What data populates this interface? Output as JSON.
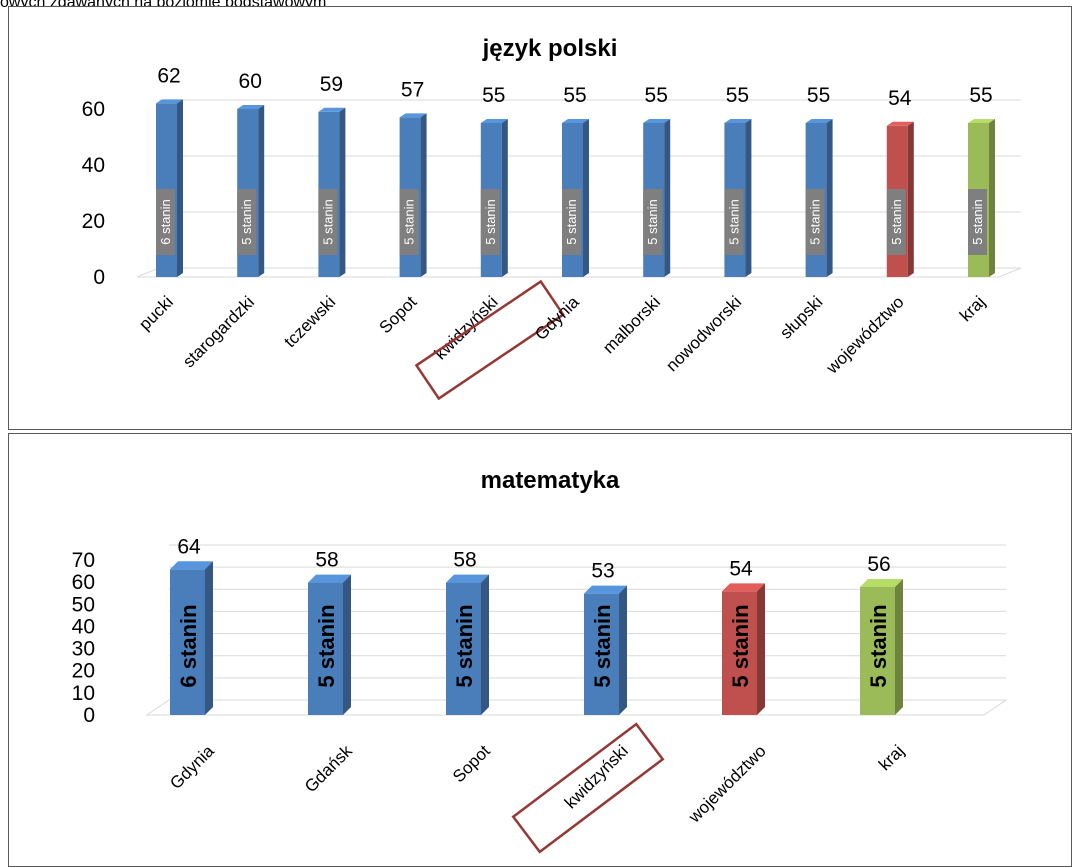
{
  "caption": "owych zdawanych na poziomie podstawowym",
  "colors": {
    "blue": "#4a7ebb",
    "red": "#c0504d",
    "green": "#9bbb59",
    "grid": "#d9d9d9",
    "highlight": "#953735"
  },
  "chart_data": [
    {
      "type": "bar",
      "title": "język polski",
      "categories": [
        "pucki",
        "starogardzki",
        "tczewski",
        "Sopot",
        "kwidzyński",
        "Gdynia",
        "malborski",
        "nowodworski",
        "słupski",
        "województwo",
        "kraj"
      ],
      "values": [
        62,
        60,
        59,
        57,
        55,
        55,
        55,
        55,
        55,
        54,
        55
      ],
      "value_labels": [
        "62",
        "60",
        "59",
        "57",
        "55",
        "55",
        "55",
        "55",
        "55",
        "54",
        "55"
      ],
      "stanin_labels": [
        "6 stanin",
        "5 stanin",
        "5 stanin",
        "5 stanin",
        "5 stanin",
        "5 stanin",
        "5 stanin",
        "5 stanin",
        "5 stanin",
        "5 stanin",
        "5 stanin"
      ],
      "bar_colors": [
        "blue",
        "blue",
        "blue",
        "blue",
        "blue",
        "blue",
        "blue",
        "blue",
        "blue",
        "red",
        "green"
      ],
      "yticks": [
        "0",
        "20",
        "40",
        "60"
      ],
      "ylim": [
        0,
        60
      ],
      "highlighted_category": "kwidzyński",
      "grid": true,
      "legend": "none"
    },
    {
      "type": "bar",
      "title": "matematyka",
      "categories": [
        "Gdynia",
        "Gdańsk",
        "Sopot",
        "kwidzyński",
        "województwo",
        "kraj"
      ],
      "values": [
        64,
        58,
        58,
        53,
        54,
        56
      ],
      "value_labels": [
        "64",
        "58",
        "58",
        "53",
        "54",
        "56"
      ],
      "stanin_labels": [
        "6 stanin",
        "5 stanin",
        "5 stanin",
        "5 stanin",
        "5 stanin",
        "5 stanin"
      ],
      "bar_colors": [
        "blue",
        "blue",
        "blue",
        "blue",
        "red",
        "green"
      ],
      "yticks": [
        "0",
        "10",
        "20",
        "30",
        "40",
        "50",
        "60",
        "70"
      ],
      "ylim": [
        0,
        70
      ],
      "highlighted_category": "kwidzyński",
      "grid": true,
      "legend": "none"
    }
  ]
}
